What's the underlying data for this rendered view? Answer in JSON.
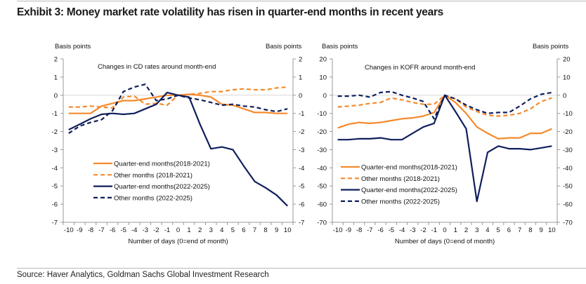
{
  "title": "Exhibit 3: Money market rate volatility has risen in quarter-end months in recent years",
  "source": "Source: Haver Analytics, Goldman Sachs Global Investment Research",
  "colors": {
    "orange": "#f58a2c",
    "navy": "#0f1f5c",
    "zero_line": "#d9d9d9",
    "axis": "#999999"
  },
  "chart_data": [
    {
      "type": "line",
      "title": "Changes in CD rates around month-end",
      "ylabel_left": "Basis points",
      "ylabel_right": "Basis points",
      "xlabel": "Number of days (0=end of month)",
      "ylim": [
        -7,
        2
      ],
      "yticks": [
        2,
        1,
        0,
        -1,
        -2,
        -3,
        -4,
        -5,
        -6,
        -7
      ],
      "x": [
        -10,
        -9,
        -8,
        -7,
        -6,
        -5,
        -4,
        -3,
        -2,
        -1,
        0,
        1,
        2,
        3,
        4,
        5,
        6,
        7,
        8,
        9,
        10
      ],
      "legend_position": "bottom-left",
      "series": [
        {
          "name": "Quarter-end months(2018-2021)",
          "color": "orange",
          "dash": false,
          "values": [
            -1,
            -1,
            -1,
            -0.6,
            -0.45,
            -0.3,
            -0.3,
            -0.2,
            -0.1,
            0,
            0,
            0.05,
            0,
            -0.1,
            -0.5,
            -0.55,
            -0.75,
            -0.95,
            -0.95,
            -1,
            -1
          ]
        },
        {
          "name": "Other months (2018-2021)",
          "color": "orange",
          "dash": true,
          "values": [
            -0.65,
            -0.65,
            -0.6,
            -0.65,
            -0.7,
            -0.1,
            -0.05,
            -0.5,
            -0.45,
            -0.55,
            0,
            0.05,
            0.1,
            0.2,
            0.2,
            0.3,
            0.35,
            0.3,
            0.3,
            0.4,
            0.45
          ]
        },
        {
          "name": "Quarter-end months(2022-2025)",
          "color": "navy",
          "dash": false,
          "values": [
            -1.9,
            -1.6,
            -1.3,
            -1.05,
            -1,
            -1.05,
            -1,
            -0.75,
            -0.5,
            0.15,
            0,
            -0.1,
            -1.6,
            -2.95,
            -2.85,
            -3,
            -3.9,
            -4.75,
            -5.1,
            -5.5,
            -6.1
          ]
        },
        {
          "name": "Other months (2022-2025)",
          "color": "navy",
          "dash": true,
          "values": [
            -2.1,
            -1.7,
            -1.5,
            -1.35,
            -0.85,
            0.2,
            0.45,
            0.6,
            -0.3,
            -0.2,
            0,
            -0.15,
            -0.25,
            -0.4,
            -0.55,
            -0.5,
            -0.6,
            -0.65,
            -0.8,
            -0.9,
            -0.75
          ]
        }
      ]
    },
    {
      "type": "line",
      "title": "Changes in KOFR around month-end",
      "ylabel_left": "Basis points",
      "ylabel_right": "Basis points",
      "xlabel": "Number of days (0=end of month)",
      "ylim": [
        -70,
        20
      ],
      "yticks": [
        20,
        10,
        0,
        -10,
        -20,
        -30,
        -40,
        -50,
        -60,
        -70
      ],
      "x": [
        -10,
        -9,
        -8,
        -7,
        -6,
        -5,
        -4,
        -3,
        -2,
        -1,
        0,
        1,
        2,
        3,
        4,
        5,
        6,
        7,
        8,
        9,
        10
      ],
      "legend_position": "bottom-left",
      "series": [
        {
          "name": "Quarter-end months(2018-2021)",
          "color": "orange",
          "dash": false,
          "values": [
            -18,
            -16,
            -15,
            -15.5,
            -15,
            -14,
            -13,
            -12.5,
            -11.5,
            -9.5,
            0,
            -4,
            -10,
            -17.5,
            -21,
            -24,
            -23.5,
            -23.5,
            -21,
            -21,
            -18.5
          ]
        },
        {
          "name": "Other months (2018-2021)",
          "color": "orange",
          "dash": true,
          "values": [
            -6.5,
            -6,
            -5.5,
            -4.5,
            -4,
            -1.5,
            -2.5,
            -4,
            -5,
            -5,
            0,
            -2,
            -6.5,
            -9,
            -11,
            -11.5,
            -11,
            -10,
            -7.5,
            -3.5,
            -1.5
          ]
        },
        {
          "name": "Quarter-end months(2022-2025)",
          "color": "navy",
          "dash": false,
          "values": [
            -24.5,
            -24.5,
            -24,
            -24,
            -23.5,
            -24.5,
            -24.5,
            -21,
            -17.5,
            -15.5,
            0,
            -9,
            -18.5,
            -58.5,
            -31.5,
            -28,
            -29.5,
            -29.5,
            -30,
            -29,
            -28
          ]
        },
        {
          "name": "Other months (2022-2025)",
          "color": "navy",
          "dash": true,
          "values": [
            -0.5,
            -0.5,
            0,
            -1,
            1.5,
            2,
            0,
            -1.5,
            -3.5,
            -13,
            0,
            -2,
            -5.5,
            -8,
            -10,
            -9.5,
            -9.5,
            -6,
            -2,
            0.5,
            1.5
          ]
        }
      ]
    }
  ]
}
